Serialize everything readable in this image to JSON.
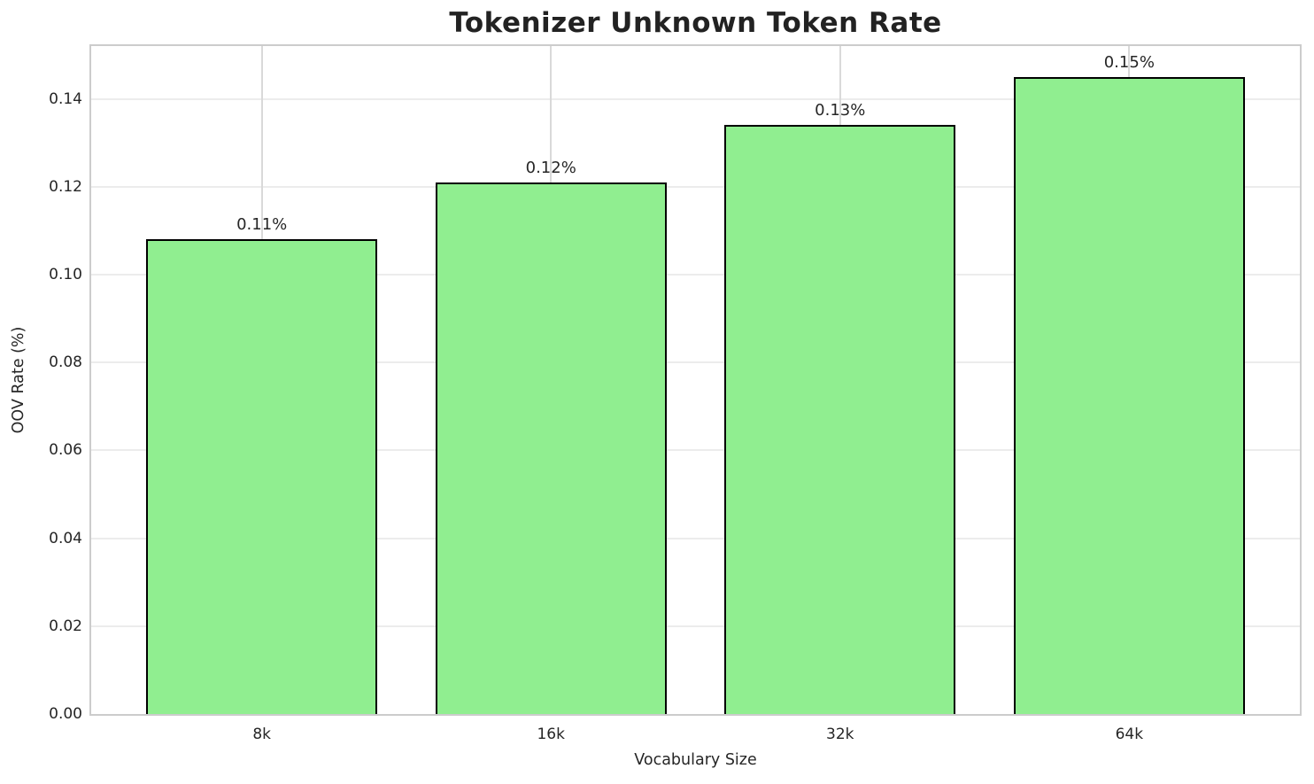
{
  "chart_data": {
    "type": "bar",
    "title": "Tokenizer Unknown Token Rate",
    "xlabel": "Vocabulary Size",
    "ylabel": "OOV Rate (%)",
    "categories": [
      "8k",
      "16k",
      "32k",
      "64k"
    ],
    "values": [
      0.108,
      0.121,
      0.134,
      0.145
    ],
    "bar_labels": [
      "0.11%",
      "0.12%",
      "0.13%",
      "0.15%"
    ],
    "yticks": [
      0,
      0.02,
      0.04,
      0.06,
      0.08,
      0.1,
      0.12,
      0.14
    ],
    "ytick_labels": [
      "0.00",
      "0.02",
      "0.04",
      "0.06",
      "0.08",
      "0.10",
      "0.12",
      "0.14"
    ],
    "ylim": [
      0,
      0.152
    ],
    "xlim": [
      -0.59,
      3.59
    ],
    "bar_width": 0.8,
    "grid": true,
    "legend": "none",
    "colors": {
      "bar_fill": "#90EE90",
      "bar_edge": "#000000",
      "spine": "#cccccc",
      "grid_horizontal": "#ececec",
      "grid_vertical": "#d9d9d9",
      "text": "#262626",
      "background": "#ffffff"
    }
  }
}
